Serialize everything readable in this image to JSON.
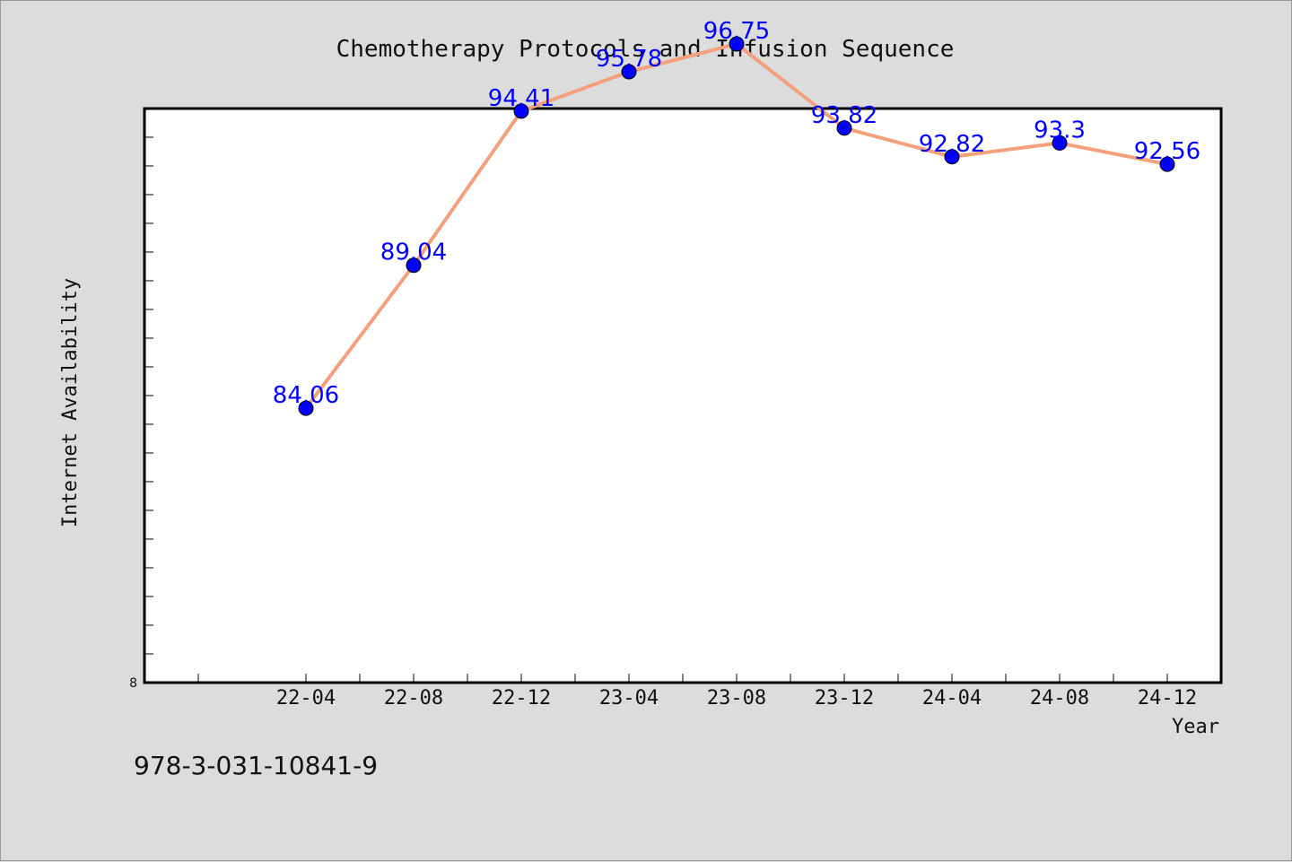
{
  "chart_data": {
    "type": "line",
    "title": "Chemotherapy Protocols and Infusion Sequence",
    "xlabel": "Year",
    "ylabel": "Internet Availability",
    "categories": [
      "22-04",
      "22-08",
      "22-12",
      "23-04",
      "23-08",
      "23-12",
      "24-04",
      "24-08",
      "24-12"
    ],
    "series": [
      {
        "values": [
          84.06,
          89.04,
          94.41,
          95.78,
          96.75,
          93.82,
          92.82,
          93.3,
          92.56
        ]
      }
    ],
    "data_labels": [
      "84.06",
      "89.04",
      "94.41",
      "95.78",
      "96.75",
      "93.82",
      "92.82",
      "93.3",
      "92.56"
    ],
    "y_tick_labels": [
      "8"
    ],
    "ylim": [
      74.5,
      94.5
    ],
    "grid": false,
    "legend": "none",
    "colors": {
      "line": "#f4a07c",
      "marker": "#0000ff",
      "label": "#0000ff",
      "background": "#dcdcdc",
      "plot_area": "#ffffff"
    }
  },
  "footer": {
    "isbn": "978-3-031-10841-9"
  }
}
